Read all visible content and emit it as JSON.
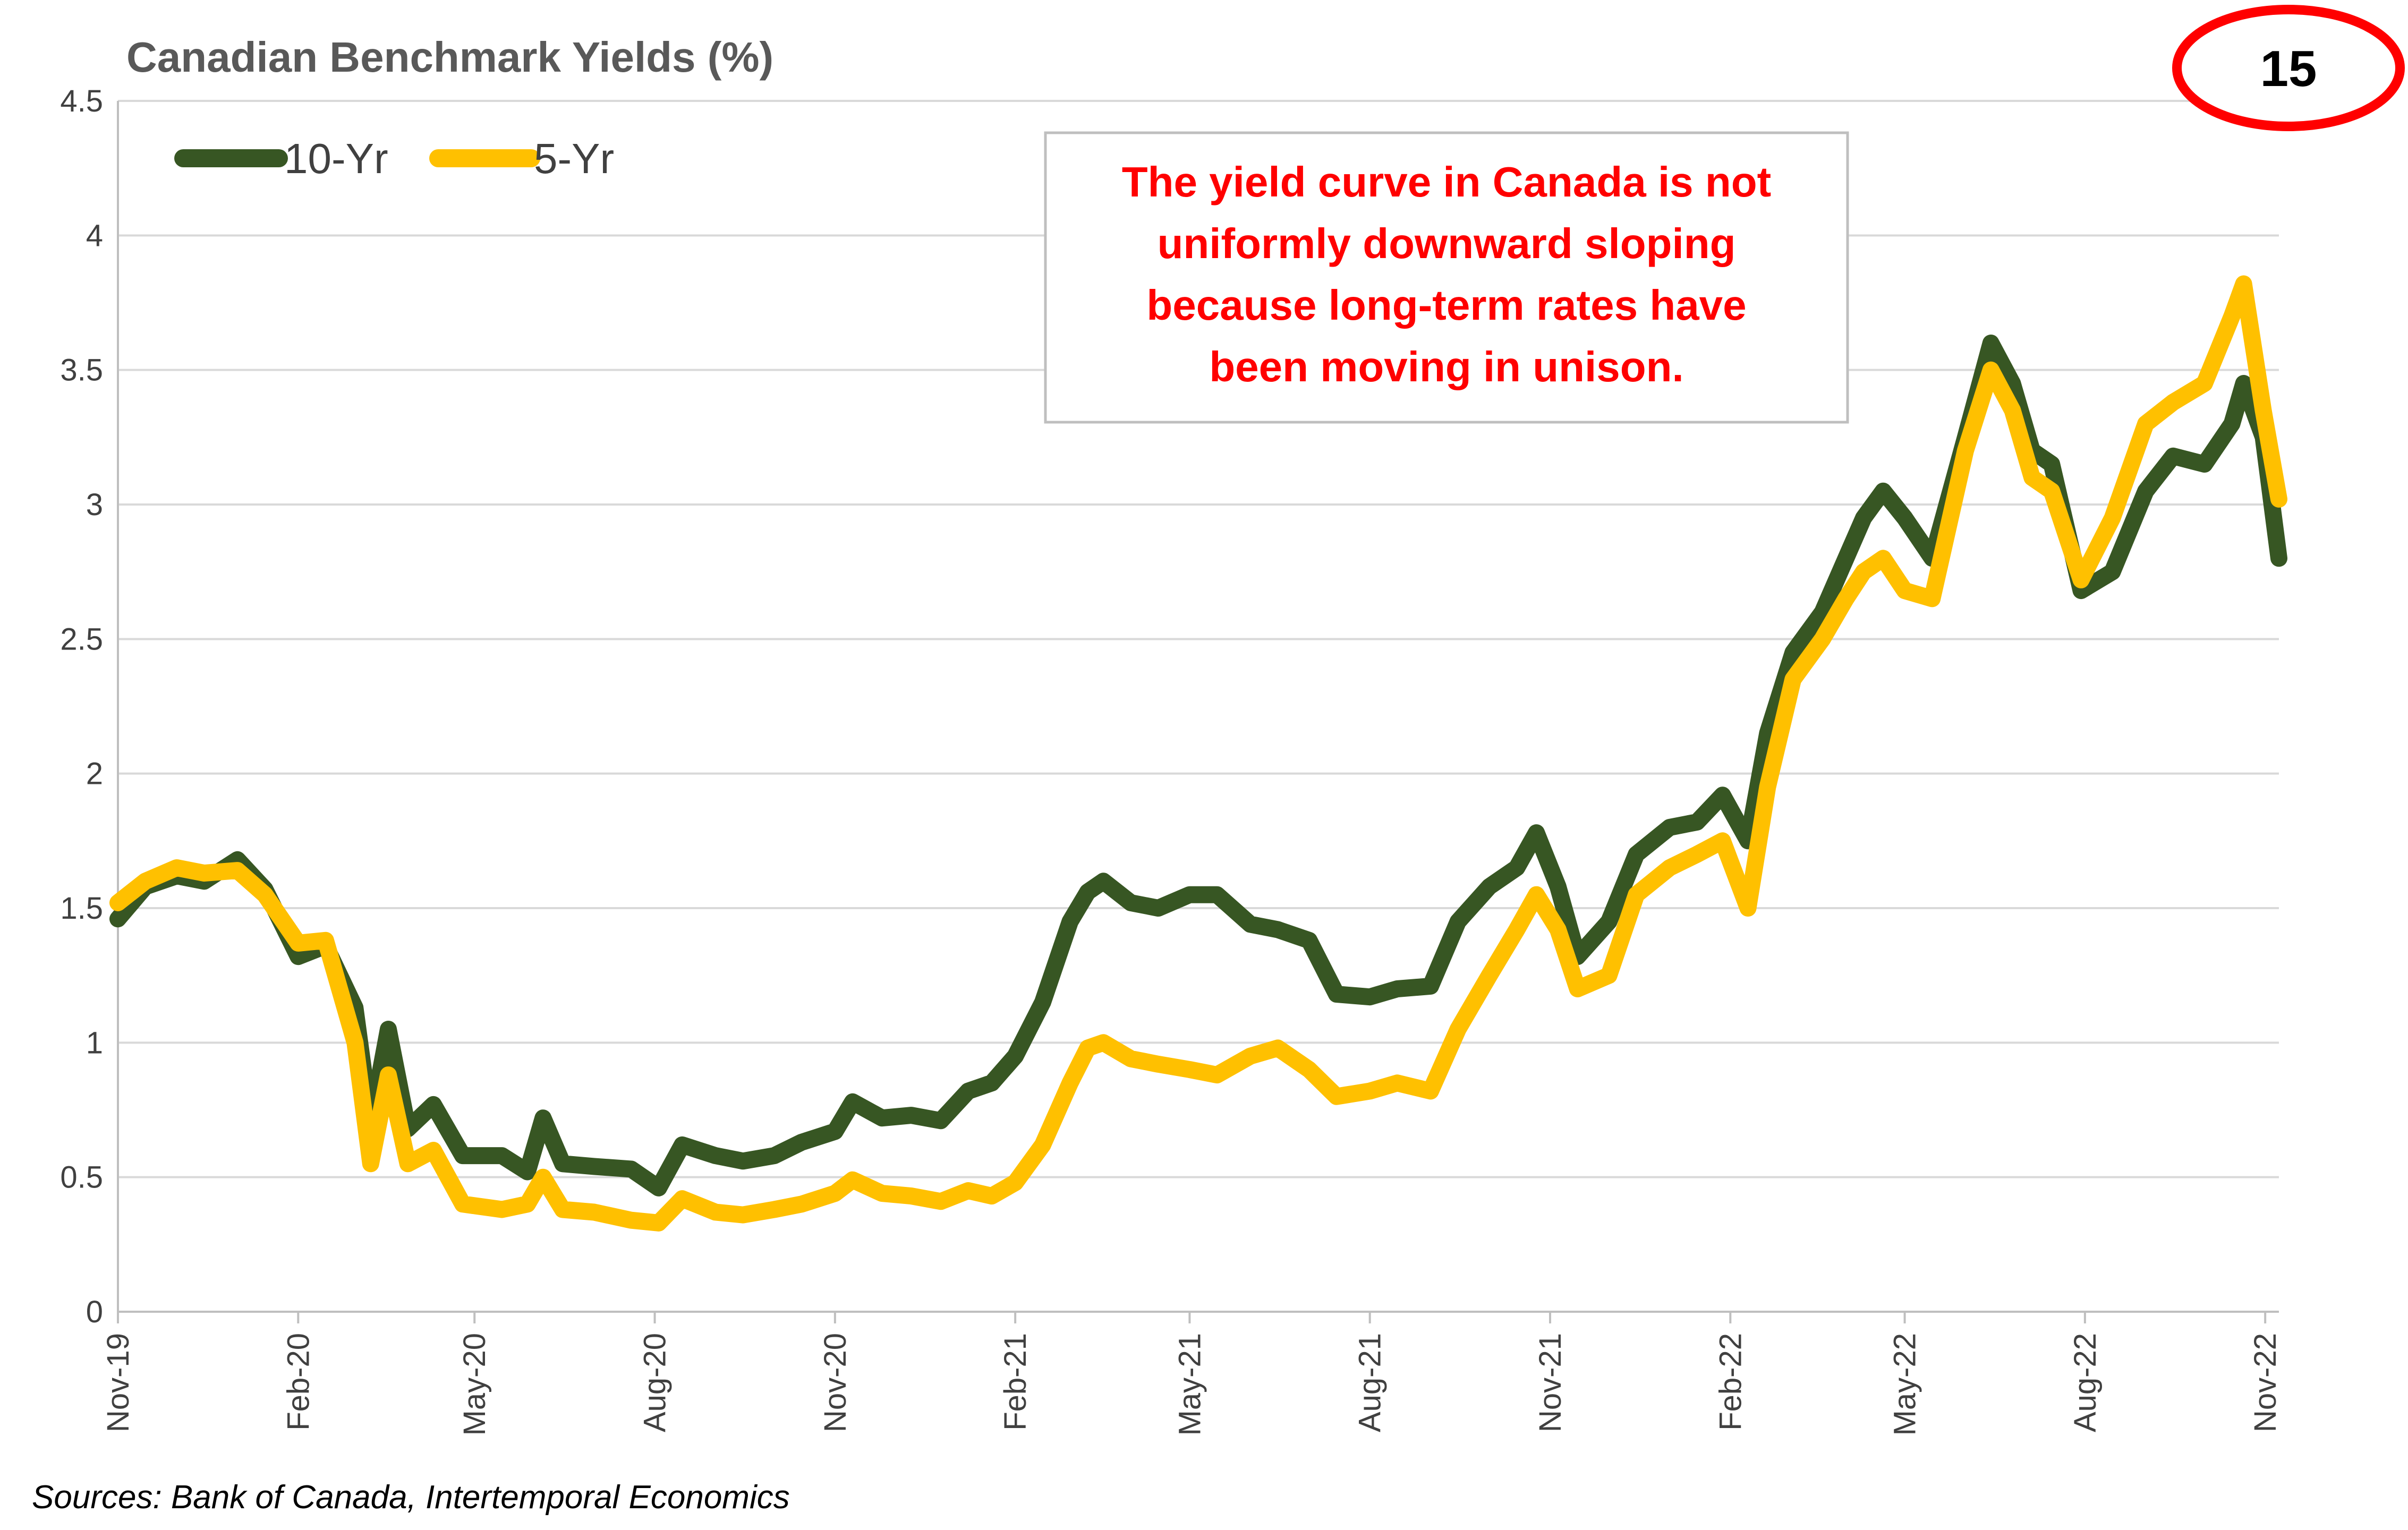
{
  "page_number": "15",
  "source_note": "Sources: Bank of Canada, Intertemporal Economics",
  "annotation": {
    "lines": [
      "The yield curve in Canada is not",
      "uniformly downward sloping",
      "because long-term rates have",
      "been moving in unison."
    ]
  },
  "colors": {
    "ten_year": "#375623",
    "five_year": "#ffc000",
    "annotation_text": "#ff0000",
    "badge_ring": "#ff0000",
    "grid": "#d9d9d9"
  },
  "chart_data": {
    "type": "line",
    "title": "Canadian Benchmark Yields (%)",
    "xlabel": "",
    "ylabel": "",
    "ylim": [
      0,
      4.5
    ],
    "yticks": [
      {
        "value": 0,
        "label": "0"
      },
      {
        "value": 0.5,
        "label": "0.5"
      },
      {
        "value": 1,
        "label": "1"
      },
      {
        "value": 1.5,
        "label": "1.5"
      },
      {
        "value": 2,
        "label": "2"
      },
      {
        "value": 2.5,
        "label": "2.5"
      },
      {
        "value": 3,
        "label": "3"
      },
      {
        "value": 3.5,
        "label": "3.5"
      },
      {
        "value": 4,
        "label": "4"
      },
      {
        "value": 4.5,
        "label": "4.5"
      }
    ],
    "xlim": [
      "2019-11-01",
      "2022-11-08"
    ],
    "xticks": [
      {
        "date": "2019-11-01",
        "label": "Nov-19"
      },
      {
        "date": "2020-02-01",
        "label": "Feb-20"
      },
      {
        "date": "2020-05-01",
        "label": "May-20"
      },
      {
        "date": "2020-08-01",
        "label": "Aug-20"
      },
      {
        "date": "2020-11-01",
        "label": "Nov-20"
      },
      {
        "date": "2021-02-01",
        "label": "Feb-21"
      },
      {
        "date": "2021-05-01",
        "label": "May-21"
      },
      {
        "date": "2021-08-01",
        "label": "Aug-21"
      },
      {
        "date": "2021-11-01",
        "label": "Nov-21"
      },
      {
        "date": "2022-02-01",
        "label": "Feb-22"
      },
      {
        "date": "2022-05-01",
        "label": "May-22"
      },
      {
        "date": "2022-08-01",
        "label": "Aug-22"
      },
      {
        "date": "2022-11-01",
        "label": "Nov-22"
      }
    ],
    "grid": "horizontal",
    "legend_position": "top-left",
    "series": [
      {
        "name": "10-Yr",
        "color": "#375623",
        "points": [
          [
            "2019-11-01",
            1.46
          ],
          [
            "2019-11-15",
            1.58
          ],
          [
            "2019-12-01",
            1.62
          ],
          [
            "2019-12-15",
            1.6
          ],
          [
            "2020-01-01",
            1.68
          ],
          [
            "2020-01-15",
            1.57
          ],
          [
            "2020-02-01",
            1.32
          ],
          [
            "2020-02-15",
            1.36
          ],
          [
            "2020-03-01",
            1.13
          ],
          [
            "2020-03-09",
            0.7
          ],
          [
            "2020-03-18",
            1.05
          ],
          [
            "2020-03-28",
            0.68
          ],
          [
            "2020-04-10",
            0.77
          ],
          [
            "2020-04-25",
            0.58
          ],
          [
            "2020-05-15",
            0.58
          ],
          [
            "2020-05-28",
            0.52
          ],
          [
            "2020-06-05",
            0.72
          ],
          [
            "2020-06-15",
            0.55
          ],
          [
            "2020-07-01",
            0.54
          ],
          [
            "2020-07-20",
            0.53
          ],
          [
            "2020-08-03",
            0.46
          ],
          [
            "2020-08-15",
            0.62
          ],
          [
            "2020-09-01",
            0.58
          ],
          [
            "2020-09-15",
            0.56
          ],
          [
            "2020-10-01",
            0.58
          ],
          [
            "2020-10-15",
            0.63
          ],
          [
            "2020-11-01",
            0.67
          ],
          [
            "2020-11-10",
            0.78
          ],
          [
            "2020-11-25",
            0.72
          ],
          [
            "2020-12-10",
            0.73
          ],
          [
            "2020-12-25",
            0.71
          ],
          [
            "2021-01-08",
            0.82
          ],
          [
            "2021-01-20",
            0.85
          ],
          [
            "2021-02-01",
            0.95
          ],
          [
            "2021-02-15",
            1.15
          ],
          [
            "2021-03-01",
            1.45
          ],
          [
            "2021-03-10",
            1.56
          ],
          [
            "2021-03-18",
            1.6
          ],
          [
            "2021-04-01",
            1.52
          ],
          [
            "2021-04-15",
            1.5
          ],
          [
            "2021-05-01",
            1.55
          ],
          [
            "2021-05-15",
            1.55
          ],
          [
            "2021-06-01",
            1.44
          ],
          [
            "2021-06-15",
            1.42
          ],
          [
            "2021-07-01",
            1.38
          ],
          [
            "2021-07-15",
            1.18
          ],
          [
            "2021-08-01",
            1.17
          ],
          [
            "2021-08-15",
            1.2
          ],
          [
            "2021-09-01",
            1.21
          ],
          [
            "2021-09-15",
            1.45
          ],
          [
            "2021-10-01",
            1.58
          ],
          [
            "2021-10-15",
            1.65
          ],
          [
            "2021-10-25",
            1.78
          ],
          [
            "2021-11-05",
            1.58
          ],
          [
            "2021-11-15",
            1.32
          ],
          [
            "2021-12-01",
            1.45
          ],
          [
            "2021-12-15",
            1.7
          ],
          [
            "2022-01-01",
            1.8
          ],
          [
            "2022-01-15",
            1.82
          ],
          [
            "2022-01-28",
            1.92
          ],
          [
            "2022-02-10",
            1.75
          ],
          [
            "2022-02-20",
            2.15
          ],
          [
            "2022-03-05",
            2.45
          ],
          [
            "2022-03-20",
            2.6
          ],
          [
            "2022-04-01",
            2.8
          ],
          [
            "2022-04-10",
            2.95
          ],
          [
            "2022-04-20",
            3.05
          ],
          [
            "2022-05-01",
            2.95
          ],
          [
            "2022-05-15",
            2.8
          ],
          [
            "2022-06-01",
            3.25
          ],
          [
            "2022-06-14",
            3.6
          ],
          [
            "2022-06-25",
            3.45
          ],
          [
            "2022-07-05",
            3.2
          ],
          [
            "2022-07-15",
            3.15
          ],
          [
            "2022-07-30",
            2.68
          ],
          [
            "2022-08-15",
            2.75
          ],
          [
            "2022-09-01",
            3.05
          ],
          [
            "2022-09-15",
            3.18
          ],
          [
            "2022-10-01",
            3.15
          ],
          [
            "2022-10-15",
            3.3
          ],
          [
            "2022-10-21",
            3.45
          ],
          [
            "2022-10-31",
            3.25
          ],
          [
            "2022-11-08",
            2.8
          ]
        ]
      },
      {
        "name": "5-Yr",
        "color": "#ffc000",
        "points": [
          [
            "2019-11-01",
            1.52
          ],
          [
            "2019-11-15",
            1.6
          ],
          [
            "2019-12-01",
            1.65
          ],
          [
            "2019-12-15",
            1.63
          ],
          [
            "2020-01-01",
            1.64
          ],
          [
            "2020-01-15",
            1.55
          ],
          [
            "2020-02-01",
            1.37
          ],
          [
            "2020-02-15",
            1.38
          ],
          [
            "2020-03-01",
            1.0
          ],
          [
            "2020-03-09",
            0.55
          ],
          [
            "2020-03-18",
            0.88
          ],
          [
            "2020-03-28",
            0.55
          ],
          [
            "2020-04-10",
            0.6
          ],
          [
            "2020-04-25",
            0.4
          ],
          [
            "2020-05-15",
            0.38
          ],
          [
            "2020-05-28",
            0.4
          ],
          [
            "2020-06-05",
            0.5
          ],
          [
            "2020-06-15",
            0.38
          ],
          [
            "2020-07-01",
            0.37
          ],
          [
            "2020-07-20",
            0.34
          ],
          [
            "2020-08-03",
            0.33
          ],
          [
            "2020-08-15",
            0.42
          ],
          [
            "2020-09-01",
            0.37
          ],
          [
            "2020-09-15",
            0.36
          ],
          [
            "2020-10-01",
            0.38
          ],
          [
            "2020-10-15",
            0.4
          ],
          [
            "2020-11-01",
            0.44
          ],
          [
            "2020-11-10",
            0.49
          ],
          [
            "2020-11-25",
            0.44
          ],
          [
            "2020-12-10",
            0.43
          ],
          [
            "2020-12-25",
            0.41
          ],
          [
            "2021-01-08",
            0.45
          ],
          [
            "2021-01-20",
            0.43
          ],
          [
            "2021-02-01",
            0.48
          ],
          [
            "2021-02-15",
            0.62
          ],
          [
            "2021-03-01",
            0.85
          ],
          [
            "2021-03-10",
            0.98
          ],
          [
            "2021-03-18",
            1.0
          ],
          [
            "2021-04-01",
            0.94
          ],
          [
            "2021-04-15",
            0.92
          ],
          [
            "2021-05-01",
            0.9
          ],
          [
            "2021-05-15",
            0.88
          ],
          [
            "2021-06-01",
            0.95
          ],
          [
            "2021-06-15",
            0.98
          ],
          [
            "2021-07-01",
            0.9
          ],
          [
            "2021-07-15",
            0.8
          ],
          [
            "2021-08-01",
            0.82
          ],
          [
            "2021-08-15",
            0.85
          ],
          [
            "2021-09-01",
            0.82
          ],
          [
            "2021-09-15",
            1.05
          ],
          [
            "2021-10-01",
            1.25
          ],
          [
            "2021-10-15",
            1.42
          ],
          [
            "2021-10-25",
            1.55
          ],
          [
            "2021-11-05",
            1.42
          ],
          [
            "2021-11-15",
            1.2
          ],
          [
            "2021-12-01",
            1.25
          ],
          [
            "2021-12-15",
            1.55
          ],
          [
            "2022-01-01",
            1.65
          ],
          [
            "2022-01-15",
            1.7
          ],
          [
            "2022-01-28",
            1.75
          ],
          [
            "2022-02-10",
            1.5
          ],
          [
            "2022-02-20",
            1.95
          ],
          [
            "2022-03-05",
            2.35
          ],
          [
            "2022-03-20",
            2.5
          ],
          [
            "2022-04-01",
            2.65
          ],
          [
            "2022-04-10",
            2.75
          ],
          [
            "2022-04-20",
            2.8
          ],
          [
            "2022-05-01",
            2.68
          ],
          [
            "2022-05-15",
            2.65
          ],
          [
            "2022-06-01",
            3.2
          ],
          [
            "2022-06-14",
            3.5
          ],
          [
            "2022-06-25",
            3.35
          ],
          [
            "2022-07-05",
            3.1
          ],
          [
            "2022-07-15",
            3.05
          ],
          [
            "2022-07-30",
            2.72
          ],
          [
            "2022-08-15",
            2.95
          ],
          [
            "2022-09-01",
            3.3
          ],
          [
            "2022-09-15",
            3.38
          ],
          [
            "2022-10-01",
            3.45
          ],
          [
            "2022-10-15",
            3.7
          ],
          [
            "2022-10-21",
            3.82
          ],
          [
            "2022-10-31",
            3.35
          ],
          [
            "2022-11-08",
            3.02
          ]
        ]
      }
    ]
  }
}
